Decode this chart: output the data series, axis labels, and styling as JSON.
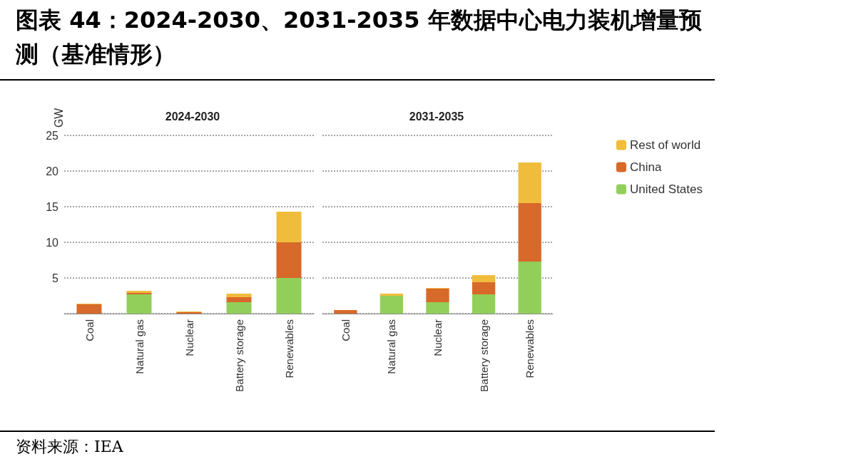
{
  "chart_data": [
    {
      "type": "bar",
      "title": "图表 44：2024-2030、2031-2035 年数据中心电力装机增量预测（基准情形）",
      "subtitle": "2024-2030",
      "ylabel": "GW",
      "annotations": [
        "资料来源：IEA"
      ],
      "categories": [
        "Coal",
        "Natural gas",
        "Nuclear",
        "Battery storage",
        "Renewables"
      ],
      "stacked": true,
      "series": [
        {
          "color": "#92cf5a",
          "values": [
            0,
            2.7,
            0,
            1.6,
            5.0
          ]
        },
        {
          "color": "#d7692a",
          "values": [
            1.3,
            0.2,
            0.2,
            0.7,
            5.0
          ]
        },
        {
          "color": "#f0bc3c",
          "values": [
            0.1,
            0.3,
            0.1,
            0.5,
            4.3
          ]
        }
      ],
      "ylim": [
        0,
        25
      ],
      "yticks": [
        {
          "value": 0,
          "label": null
        },
        5,
        10,
        15,
        20,
        25
      ],
      "grid": "y",
      "legend": false
    },
    {
      "type": "bar",
      "subtitle": "2031-2035",
      "categories": [
        "Coal",
        "Natural gas",
        "Nuclear",
        "Battery storage",
        "Renewables"
      ],
      "stacked": true,
      "series": [
        {
          "name": "United States",
          "color": "#92cf5a",
          "values": [
            0,
            2.5,
            1.6,
            2.7,
            7.3
          ]
        },
        {
          "name": "China",
          "color": "#d7692a",
          "values": [
            0.5,
            0,
            1.9,
            1.7,
            8.2
          ]
        },
        {
          "name": "Rest of world",
          "color": "#f0bc3c",
          "values": [
            0,
            0.3,
            0.1,
            1.0,
            5.7
          ]
        }
      ],
      "ylim": [
        0,
        25
      ],
      "yticks": [
        {
          "value": 0,
          "label": null
        },
        5,
        10,
        15,
        20,
        25
      ],
      "grid": "y",
      "legend": "top right",
      "tick_labels": "x"
    }
  ]
}
